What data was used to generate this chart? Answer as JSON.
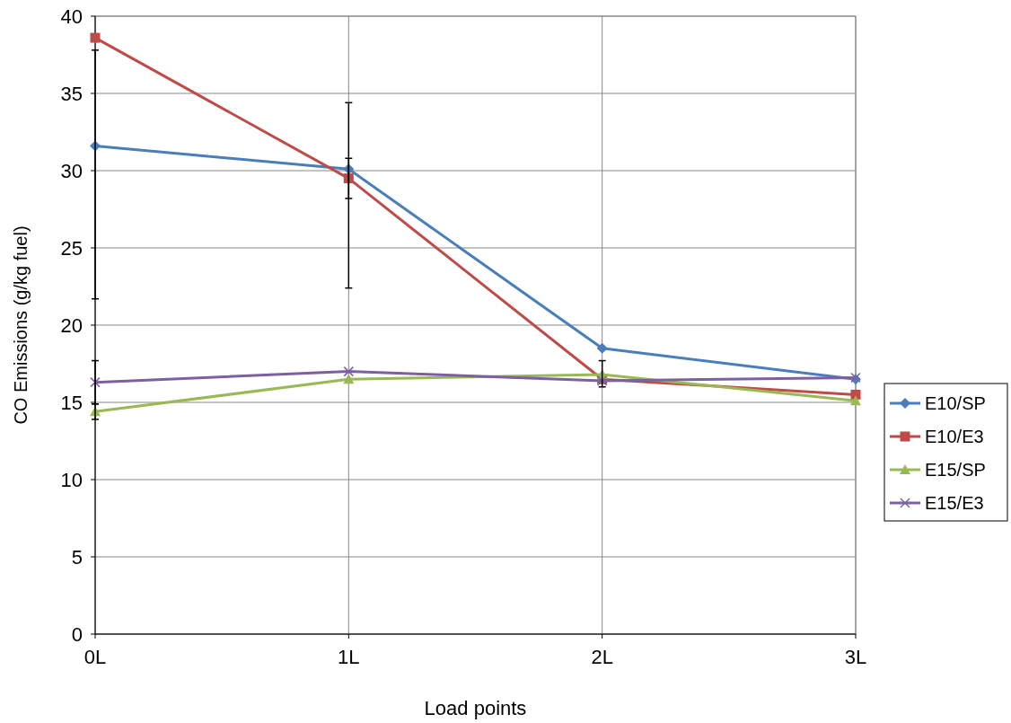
{
  "chart_data": {
    "type": "line",
    "xlabel": "Load points",
    "ylabel": "CO Emissions (g/kg fuel)",
    "categories": [
      "0L",
      "1L",
      "2L",
      "3L"
    ],
    "ylim": [
      0,
      40
    ],
    "yticks": [
      0,
      5,
      10,
      15,
      20,
      25,
      30,
      35,
      40
    ],
    "grid": true,
    "legend": "right",
    "line_style": "solid",
    "series": [
      {
        "name": "E10/SP",
        "color": "#4a7ebb",
        "marker": "diamond",
        "values": [
          31.6,
          30.1,
          18.5,
          16.5
        ],
        "errors": [
          [
            21.7,
            37.8
          ],
          [
            22.4,
            34.4
          ],
          null,
          null
        ]
      },
      {
        "name": "E10/E3",
        "color": "#be4b48",
        "marker": "square",
        "values": [
          38.6,
          29.5,
          16.5,
          15.5
        ],
        "errors": [
          null,
          [
            28.2,
            30.8
          ],
          null,
          null
        ]
      },
      {
        "name": "E15/SP",
        "color": "#98b954",
        "marker": "triangle",
        "values": [
          14.4,
          16.5,
          16.8,
          15.1
        ],
        "errors": [
          [
            13.9,
            14.9
          ],
          null,
          [
            16.0,
            17.7
          ],
          null
        ]
      },
      {
        "name": "E15/E3",
        "color": "#7d60a0",
        "marker": "cross",
        "values": [
          16.3,
          17.0,
          16.4,
          16.6
        ],
        "errors": [
          [
            14.9,
            17.7
          ],
          null,
          null,
          null
        ]
      }
    ]
  }
}
